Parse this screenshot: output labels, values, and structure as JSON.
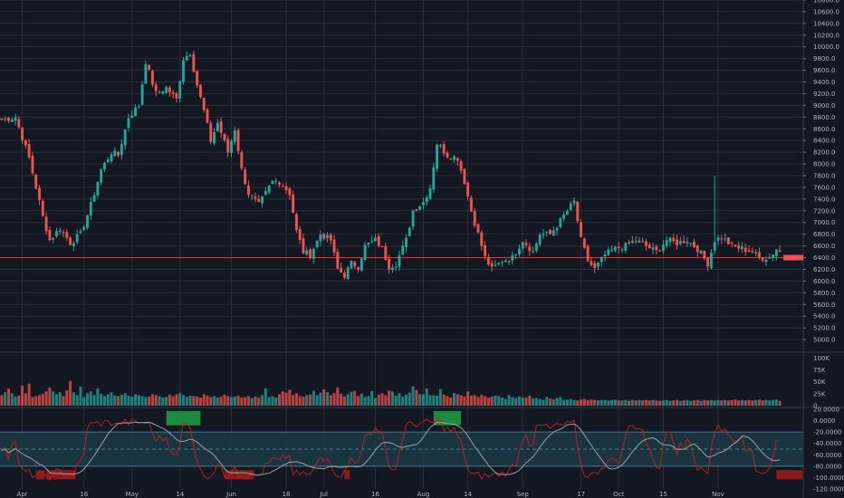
{
  "chart_data": [
    {
      "type": "candlestick",
      "title": "",
      "ylim": [
        4800,
        10800
      ],
      "y_ticks": [
        5000,
        5200,
        5400,
        5600,
        5800,
        6000,
        6200,
        6400,
        6600,
        6800,
        7000,
        7200,
        7400,
        7600,
        7800,
        8000,
        8200,
        8400,
        8600,
        8800,
        9000,
        9200,
        9400,
        9600,
        9800,
        10000,
        10200,
        10400,
        10600,
        10800
      ],
      "y_tick_labels": [
        "5000.0",
        "5200.0",
        "5400.0",
        "5600.0",
        "5800.0",
        "6000.0",
        "6200.0",
        "6400.0",
        "6600.0",
        "6800.0",
        "7000.0",
        "7200.0",
        "7400.0",
        "7600.0",
        "7800.0",
        "8000.0",
        "8200.0",
        "8400.0",
        "8600.0",
        "8800.0",
        "9000.0",
        "9200.0",
        "9400.0",
        "9600.0",
        "9800.0",
        "10000.0",
        "10200.0",
        "10400.0",
        "10600.0",
        "10800.0"
      ],
      "x_tick_labels": [
        "Apr",
        "16",
        "May",
        "14",
        "Jun",
        "18",
        "Jul",
        "16",
        "Aug",
        "14",
        "Sep",
        "17",
        "Oct",
        "15",
        "Nov"
      ],
      "horizontal_line": 6400,
      "current_value": 6400,
      "grid": true,
      "keypoints": [
        [
          0,
          8750
        ],
        [
          4,
          8800
        ],
        [
          8,
          8100
        ],
        [
          12,
          7100
        ],
        [
          14,
          6700
        ],
        [
          17,
          6900
        ],
        [
          20,
          6650
        ],
        [
          23,
          6800
        ],
        [
          26,
          7300
        ],
        [
          29,
          7900
        ],
        [
          32,
          8200
        ],
        [
          34,
          8150
        ],
        [
          37,
          8800
        ],
        [
          40,
          9000
        ],
        [
          42,
          9750
        ],
        [
          45,
          9200
        ],
        [
          48,
          9300
        ],
        [
          51,
          9100
        ],
        [
          53,
          9800
        ],
        [
          55,
          9900
        ],
        [
          57,
          9350
        ],
        [
          59,
          8900
        ],
        [
          61,
          8400
        ],
        [
          63,
          8700
        ],
        [
          66,
          8200
        ],
        [
          68,
          8600
        ],
        [
          70,
          7900
        ],
        [
          72,
          7500
        ],
        [
          75,
          7300
        ],
        [
          77,
          7500
        ],
        [
          79,
          7700
        ],
        [
          81,
          7700
        ],
        [
          84,
          7500
        ],
        [
          86,
          6850
        ],
        [
          88,
          6500
        ],
        [
          90,
          6450
        ],
        [
          93,
          6800
        ],
        [
          96,
          6700
        ],
        [
          98,
          6200
        ],
        [
          100,
          6100
        ],
        [
          102,
          6300
        ],
        [
          104,
          6250
        ],
        [
          106,
          6600
        ],
        [
          109,
          6700
        ],
        [
          111,
          6550
        ],
        [
          113,
          6250
        ],
        [
          115,
          6300
        ],
        [
          118,
          6700
        ],
        [
          120,
          7200
        ],
        [
          123,
          7350
        ],
        [
          125,
          7600
        ],
        [
          127,
          8350
        ],
        [
          130,
          8150
        ],
        [
          133,
          8100
        ],
        [
          135,
          7700
        ],
        [
          137,
          7200
        ],
        [
          139,
          6800
        ],
        [
          141,
          6400
        ],
        [
          143,
          6200
        ],
        [
          146,
          6350
        ],
        [
          149,
          6400
        ],
        [
          152,
          6700
        ],
        [
          155,
          6500
        ],
        [
          157,
          6800
        ],
        [
          160,
          6800
        ],
        [
          162,
          6950
        ],
        [
          165,
          7200
        ],
        [
          167,
          7350
        ],
        [
          169,
          6700
        ],
        [
          171,
          6350
        ],
        [
          173,
          6200
        ],
        [
          176,
          6450
        ],
        [
          179,
          6550
        ],
        [
          182,
          6600
        ],
        [
          185,
          6700
        ],
        [
          188,
          6600
        ],
        [
          191,
          6500
        ],
        [
          194,
          6700
        ],
        [
          197,
          6650
        ],
        [
          200,
          6700
        ],
        [
          203,
          6550
        ],
        [
          206,
          6300
        ],
        [
          208,
          6700
        ],
        [
          210,
          6750
        ],
        [
          213,
          6600
        ],
        [
          216,
          6550
        ],
        [
          219,
          6500
        ],
        [
          221,
          6400
        ],
        [
          224,
          6400
        ],
        [
          226,
          6550
        ],
        [
          228,
          6450
        ]
      ],
      "spike_index": 208,
      "spike_high": 7800
    },
    {
      "type": "bar",
      "series_name": "volume",
      "ylim": [
        0,
        110000
      ],
      "y_ticks": [
        0,
        25000,
        50000,
        75000,
        100000
      ],
      "y_tick_labels": [
        "0",
        "25K",
        "50K",
        "75K",
        "100K"
      ],
      "values": [
        22000,
        28000,
        36000,
        26000,
        19000,
        21000,
        42000,
        26000,
        46000,
        18000,
        20000,
        22000,
        25000,
        30000,
        38000,
        30000,
        24000,
        28000,
        20000,
        32000,
        52000,
        28000,
        22000,
        40000,
        18000,
        26000,
        30000,
        22000,
        36000,
        25000,
        20000,
        24000,
        28000,
        22000,
        20000,
        23000,
        26000,
        21000,
        19000,
        24000,
        22000,
        20000,
        18000,
        19000,
        24000,
        22000,
        20000,
        17000,
        18000,
        23000,
        20000,
        24000,
        26000,
        22000,
        18000,
        21000,
        20000,
        19000,
        17000,
        24000,
        21000,
        18000,
        20000,
        17000,
        19000,
        23000,
        20000,
        18000,
        19000,
        21000,
        17000,
        18000,
        20000,
        16000,
        19000,
        17000,
        22000,
        36000,
        18000,
        20000,
        17000,
        24000,
        30000,
        27000,
        33000,
        22000,
        26000,
        20000,
        19000,
        22000,
        23000,
        31000,
        22000,
        27000,
        34000,
        28000,
        22000,
        26000,
        38000,
        25000,
        19000,
        24000,
        29000,
        31000,
        20000,
        25000,
        18000,
        20000,
        31000,
        16000,
        23000,
        26000,
        22000,
        32000,
        30000,
        21000,
        26000,
        19000,
        23000,
        27000,
        40000,
        33000,
        24000,
        24000,
        36000,
        22000,
        22000,
        21000,
        35000,
        23000,
        20000,
        17000,
        26000,
        24000,
        22000,
        19000,
        30000,
        21000,
        22000,
        18000,
        23000,
        20000,
        17000,
        19000,
        21000,
        20000,
        17000,
        14000,
        22000,
        18000,
        16000,
        19000,
        17000,
        17000,
        21000,
        15000,
        16000,
        14000,
        12000,
        18000,
        15000,
        13000,
        16000,
        18000,
        12000,
        13000,
        14000,
        12000,
        11000,
        13000,
        14000,
        12000,
        13000,
        12000,
        11000,
        12000,
        12000,
        11000,
        12000,
        13000,
        11000,
        11000,
        12000,
        10000,
        12000,
        11000,
        12000,
        11000,
        12000,
        11000,
        12000,
        11000,
        10000,
        11000,
        12000,
        10000,
        11000,
        12000,
        10000,
        11000,
        12000,
        10000,
        11000,
        12000,
        10000,
        12000,
        11000,
        12000,
        11000,
        12000,
        11000,
        12000,
        11000,
        12000,
        13000,
        11000,
        12000,
        11000,
        12000,
        11000,
        12000,
        13000,
        11000,
        12000,
        11000,
        12000,
        13000,
        10000
      ]
    },
    {
      "type": "line",
      "series_name": "oscillator",
      "ylim": [
        -120,
        20
      ],
      "y_ticks": [
        20,
        0,
        -20,
        -40,
        -60,
        -80,
        -100,
        -120
      ],
      "y_tick_labels": [
        "20.0000",
        "0.0000",
        "-20.0000",
        "-40.0000",
        "-60.0000",
        "-80.0000",
        "-100.0000",
        "-120.0000"
      ],
      "band": [
        -80,
        -20
      ],
      "midline": -50,
      "overbought_zones": [
        [
          48,
          58
        ],
        [
          126,
          134
        ]
      ],
      "oversold_zones": [
        [
          10,
          12
        ],
        [
          13,
          21
        ],
        [
          65,
          73
        ],
        [
          100,
          101
        ],
        [
          226,
          233
        ]
      ]
    }
  ]
}
